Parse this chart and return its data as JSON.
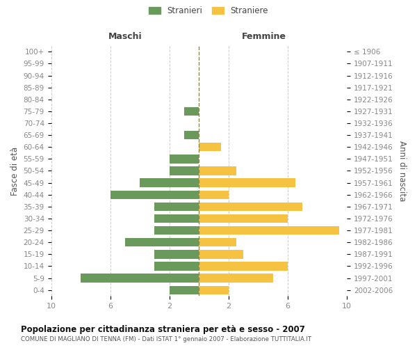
{
  "age_groups_bottom_to_top": [
    "0-4",
    "5-9",
    "10-14",
    "15-19",
    "20-24",
    "25-29",
    "30-34",
    "35-39",
    "40-44",
    "45-49",
    "50-54",
    "55-59",
    "60-64",
    "65-69",
    "70-74",
    "75-79",
    "80-84",
    "85-89",
    "90-94",
    "95-99",
    "100+"
  ],
  "birth_years_bottom_to_top": [
    "2002-2006",
    "1997-2001",
    "1992-1996",
    "1987-1991",
    "1982-1986",
    "1977-1981",
    "1972-1976",
    "1967-1971",
    "1962-1966",
    "1957-1961",
    "1952-1956",
    "1947-1951",
    "1942-1946",
    "1937-1941",
    "1932-1936",
    "1927-1931",
    "1922-1926",
    "1917-1921",
    "1912-1916",
    "1907-1911",
    "≤ 1906"
  ],
  "males_bottom_to_top": [
    2,
    8,
    3,
    3,
    5,
    3,
    3,
    3,
    6,
    4,
    2,
    2,
    0,
    1,
    0,
    1,
    0,
    0,
    0,
    0,
    0
  ],
  "females_bottom_to_top": [
    2,
    5,
    6,
    3,
    2.5,
    9.5,
    6,
    7,
    2,
    6.5,
    2.5,
    0,
    1.5,
    0,
    0,
    0,
    0,
    0,
    0,
    0,
    0
  ],
  "male_color": "#6a9a5b",
  "female_color": "#f5c242",
  "title": "Popolazione per cittadinanza straniera per età e sesso - 2007",
  "subtitle": "COMUNE DI MAGLIANO DI TENNA (FM) - Dati ISTAT 1° gennaio 2007 - Elaborazione TUTTITALIA.IT",
  "xlabel_left": "Maschi",
  "xlabel_right": "Femmine",
  "ylabel_left": "Fasce di età",
  "ylabel_right": "Anni di nascita",
  "legend_males": "Stranieri",
  "legend_females": "Straniere",
  "xlim": 10,
  "xtick_positions": [
    -10,
    -6,
    -2,
    2,
    6,
    10
  ],
  "xtick_labels": [
    "10",
    "6",
    "2",
    "2",
    "6",
    "10"
  ],
  "background_color": "#ffffff",
  "grid_color": "#cccccc"
}
